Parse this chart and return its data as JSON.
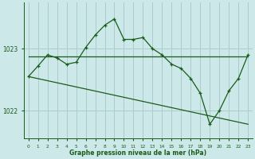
{
  "background_color": "#cce8e8",
  "grid_color": "#aacccc",
  "line_color": "#1a5c1a",
  "xlabel": "Graphe pression niveau de la mer (hPa)",
  "yticks": [
    1022,
    1023
  ],
  "xticks": [
    0,
    1,
    2,
    3,
    4,
    5,
    6,
    7,
    8,
    9,
    10,
    11,
    12,
    13,
    14,
    15,
    16,
    17,
    18,
    19,
    20,
    21,
    22,
    23
  ],
  "xlim": [
    -0.5,
    23.5
  ],
  "ylim": [
    1021.55,
    1023.75
  ],
  "series1_x": [
    0,
    1,
    2,
    3,
    4,
    5,
    6,
    7,
    8,
    9,
    10,
    11,
    12,
    13,
    14,
    15,
    16,
    17,
    18,
    19,
    20,
    21,
    22,
    23
  ],
  "series1_y": [
    1022.55,
    1022.72,
    1022.9,
    1022.85,
    1022.75,
    1022.78,
    1023.02,
    1023.22,
    1023.38,
    1023.48,
    1023.15,
    1023.15,
    1023.18,
    1023.0,
    1022.9,
    1022.75,
    1022.68,
    1022.52,
    1022.28,
    1021.78,
    1022.0,
    1022.32,
    1022.52,
    1022.9
  ],
  "series2_x": [
    0,
    23
  ],
  "series2_y": [
    1022.88,
    1022.88
  ],
  "series3_x": [
    0,
    23
  ],
  "series3_y": [
    1022.55,
    1021.78
  ]
}
